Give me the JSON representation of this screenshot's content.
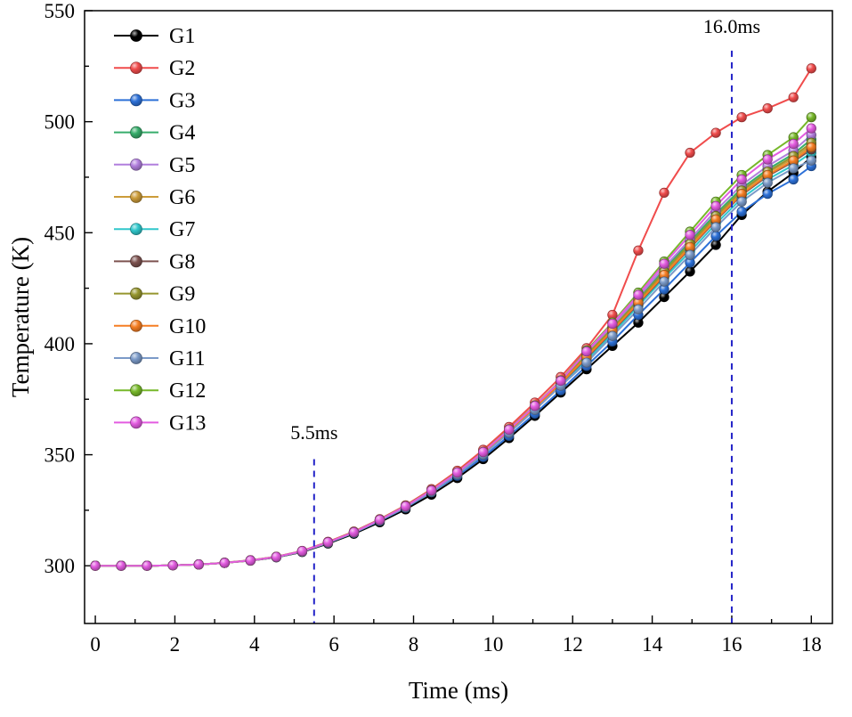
{
  "chart_data": {
    "type": "line",
    "title": "",
    "xlabel": "Time (ms)",
    "ylabel": "Temperature (K)",
    "xlim": [
      -0.27,
      18.53
    ],
    "ylim": [
      274,
      550
    ],
    "x_ticks": [
      0,
      2,
      4,
      6,
      8,
      10,
      12,
      14,
      16,
      18
    ],
    "y_ticks": [
      300,
      350,
      400,
      450,
      500,
      550
    ],
    "grid": false,
    "legend_position": "top-left",
    "annotation_color": "#2323c8",
    "annotations": [
      {
        "label": "5.5ms",
        "x": 5.5,
        "text_y": 357,
        "line_top": 348
      },
      {
        "label": "16.0ms",
        "x": 16.0,
        "text_y": 540,
        "line_top": 532
      }
    ],
    "x": [
      0,
      0.65,
      1.3,
      1.95,
      2.6,
      3.25,
      3.9,
      4.55,
      5.2,
      5.85,
      6.5,
      7.15,
      7.8,
      8.45,
      9.1,
      9.75,
      10.4,
      11.05,
      11.7,
      12.35,
      13.0,
      13.65,
      14.3,
      14.95,
      15.6,
      16.25,
      16.9,
      17.55,
      18.0
    ],
    "series": [
      {
        "name": "G1",
        "color": "#000000",
        "values": [
          300,
          300,
          300,
          300.2,
          300.6,
          301.3,
          302.3,
          303.8,
          306.2,
          310,
          314.4,
          319.6,
          325.4,
          332,
          339.5,
          348,
          357.5,
          367.5,
          378,
          388.5,
          399,
          409.5,
          421,
          432.5,
          444.5,
          458,
          468.5,
          477,
          484
        ]
      },
      {
        "name": "G2",
        "color": "#f04c4c",
        "values": [
          300,
          300,
          300,
          300.2,
          300.6,
          301.4,
          302.5,
          304.1,
          306.7,
          310.8,
          315.4,
          321,
          327.2,
          334.5,
          342.8,
          352.2,
          362.5,
          373.5,
          385,
          398,
          413,
          442,
          468,
          486,
          495,
          502,
          506,
          511,
          524
        ]
      },
      {
        "name": "G3",
        "color": "#2d71d8",
        "values": [
          300,
          300,
          300,
          300.2,
          300.6,
          301.3,
          302.4,
          303.9,
          306.4,
          310.3,
          314.8,
          320.2,
          326.1,
          333.1,
          340.5,
          349,
          358.5,
          368.5,
          379,
          390,
          401,
          413,
          424.5,
          436.5,
          448.5,
          459.5,
          467.5,
          474,
          480
        ]
      },
      {
        "name": "G4",
        "color": "#37ad6b",
        "values": [
          300,
          300,
          300,
          300.2,
          300.6,
          301.3,
          302.4,
          304,
          306.5,
          310.5,
          315,
          320.6,
          326.6,
          333.7,
          341.8,
          350.9,
          361,
          371.6,
          382.8,
          395,
          407.5,
          420.5,
          433.5,
          446,
          458.5,
          470,
          478.5,
          485.5,
          492
        ]
      },
      {
        "name": "G5",
        "color": "#b17fdd",
        "values": [
          300,
          300,
          300,
          300.2,
          300.6,
          301.3,
          302.4,
          304,
          306.5,
          310.5,
          315.1,
          320.7,
          326.7,
          333.8,
          341.9,
          351.1,
          361.2,
          371.9,
          383.1,
          396,
          408,
          421,
          434.5,
          447,
          460,
          471.5,
          480,
          487,
          494
        ]
      },
      {
        "name": "G6",
        "color": "#cc9c3a",
        "values": [
          300,
          300,
          300,
          300.2,
          300.6,
          301.3,
          302.4,
          304,
          306.5,
          310.5,
          315,
          320.5,
          326.6,
          333.6,
          341.6,
          350.7,
          360.7,
          371.3,
          382.4,
          394.5,
          406.5,
          419,
          432,
          444.5,
          457,
          468.5,
          477,
          483.5,
          489.5
        ]
      },
      {
        "name": "G7",
        "color": "#30c7cb",
        "values": [
          300,
          300,
          300,
          300.2,
          300.6,
          301.3,
          302.4,
          304,
          306.5,
          310.4,
          314.9,
          320.4,
          326.4,
          333.4,
          341.3,
          350.2,
          360.1,
          370.5,
          381.4,
          392.5,
          404.5,
          417,
          429.5,
          441.5,
          454,
          465.5,
          474,
          480.5,
          486
        ]
      },
      {
        "name": "G8",
        "color": "#7d5350",
        "values": [
          300,
          300,
          300,
          300.2,
          300.6,
          301.3,
          302.4,
          304,
          306.5,
          310.5,
          315,
          320.5,
          326.5,
          333.5,
          341.5,
          350.5,
          360.5,
          371,
          382,
          393.5,
          405.5,
          418,
          430.5,
          443,
          455.5,
          467,
          475.5,
          482,
          487.5
        ]
      },
      {
        "name": "G9",
        "color": "#96962f",
        "values": [
          300,
          300,
          300,
          300.2,
          300.6,
          301.3,
          302.4,
          304,
          306.5,
          310.5,
          315,
          320.6,
          326.6,
          333.6,
          341.7,
          350.8,
          360.8,
          371.4,
          382.6,
          395,
          407,
          419.5,
          432.5,
          445,
          457.5,
          469,
          477.5,
          484.5,
          490.5
        ]
      },
      {
        "name": "G10",
        "color": "#f57e23",
        "values": [
          300,
          300,
          300,
          300.2,
          300.6,
          301.3,
          302.4,
          304,
          306.5,
          310.5,
          315,
          320.5,
          326.5,
          333.5,
          341.6,
          350.6,
          360.6,
          371.1,
          382.2,
          394,
          406,
          418.5,
          431,
          443.5,
          456,
          467.5,
          476,
          482.5,
          488.5
        ]
      },
      {
        "name": "G11",
        "color": "#7b9ac8",
        "values": [
          300,
          300,
          300,
          300.2,
          300.6,
          301.3,
          302.4,
          303.9,
          306.4,
          310.4,
          314.9,
          320.3,
          326.3,
          333.3,
          341.1,
          350,
          359.8,
          370.2,
          381,
          391.5,
          403.5,
          415.5,
          428,
          440,
          452.5,
          464,
          472.5,
          479,
          482.5
        ]
      },
      {
        "name": "G12",
        "color": "#77b82a",
        "values": [
          300,
          300,
          300,
          300.2,
          300.6,
          301.3,
          302.4,
          304,
          306.6,
          310.6,
          315.2,
          320.8,
          326.9,
          334,
          342.1,
          351.3,
          361.5,
          372.2,
          383.5,
          397,
          409.5,
          423,
          437,
          450.5,
          464,
          476,
          485,
          493,
          502
        ]
      },
      {
        "name": "G13",
        "color": "#e35ce0",
        "values": [
          300,
          300,
          300,
          300.2,
          300.6,
          301.3,
          302.4,
          304,
          306.6,
          310.6,
          315.1,
          320.7,
          326.8,
          333.9,
          342,
          351.2,
          361.3,
          372,
          383.3,
          396.5,
          409,
          422,
          436,
          449,
          462,
          474,
          483,
          490,
          497
        ]
      }
    ]
  }
}
